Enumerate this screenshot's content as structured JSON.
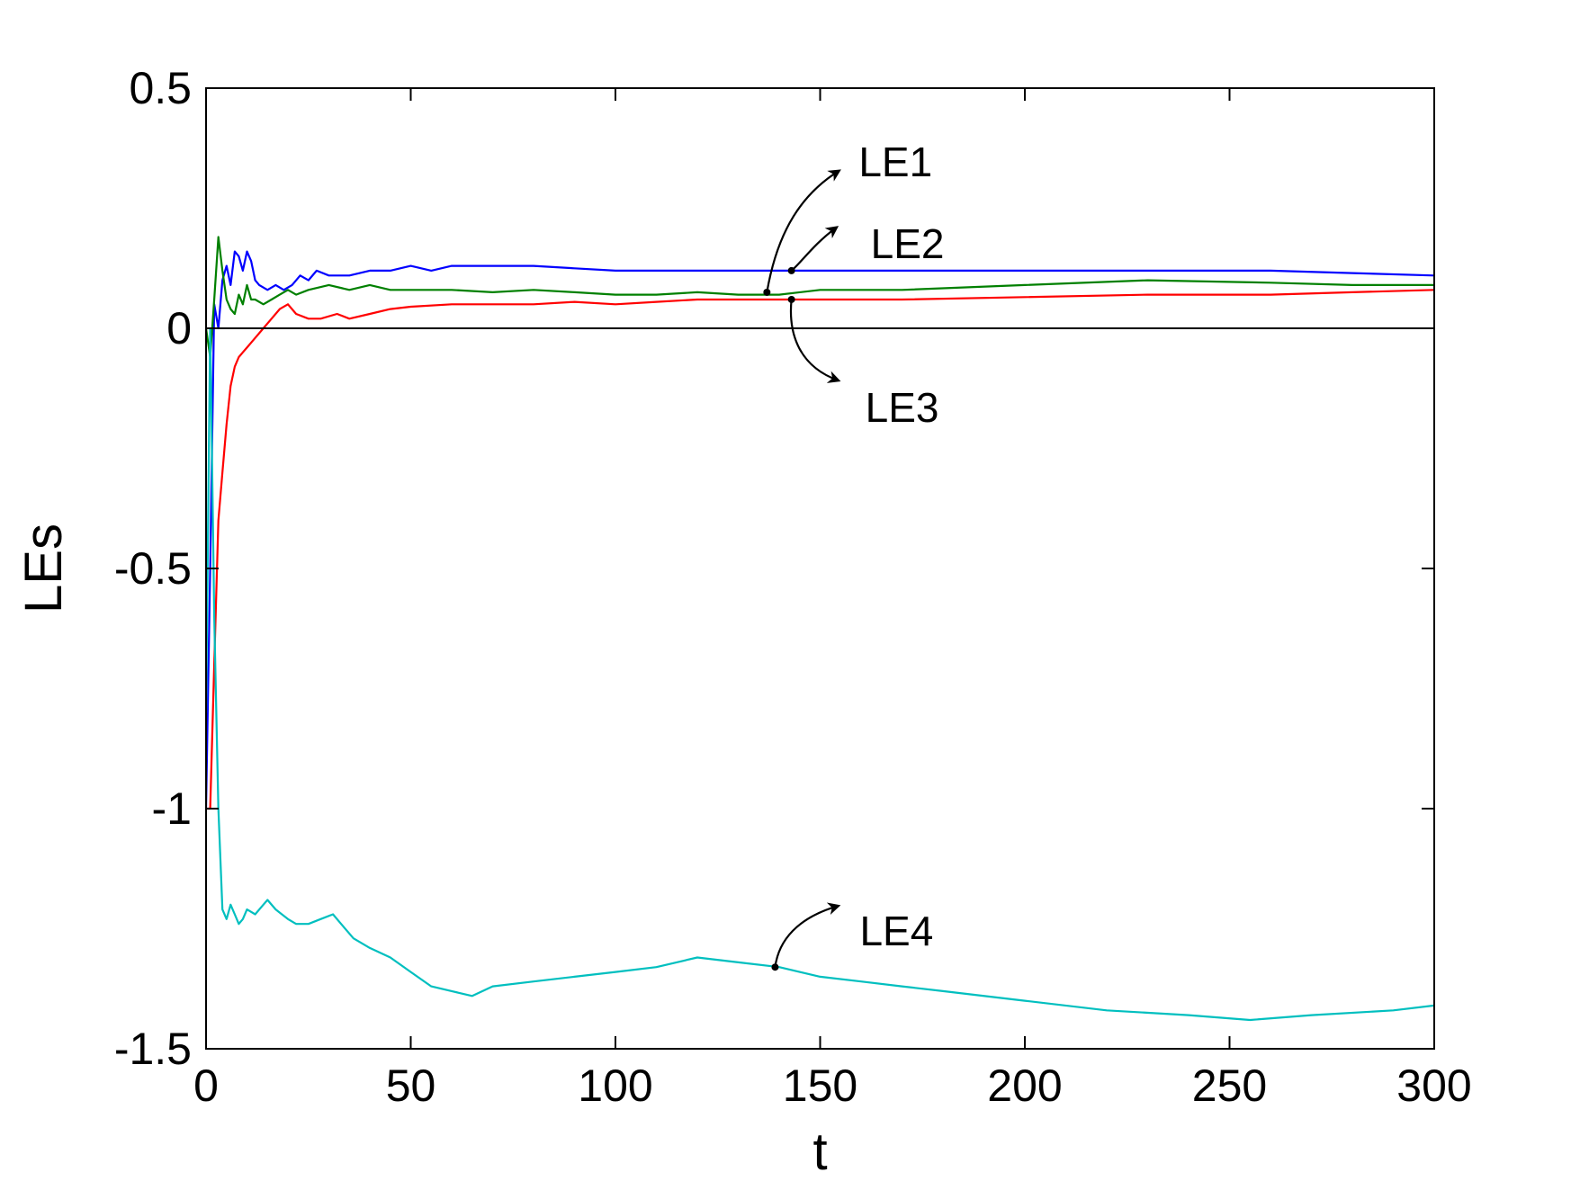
{
  "chart_data": {
    "type": "line",
    "xlabel": "t",
    "ylabel": "LEs",
    "xlim": [
      0,
      300
    ],
    "ylim": [
      -1.5,
      0.5
    ],
    "xticks": [
      0,
      50,
      100,
      150,
      200,
      250,
      300
    ],
    "xtick_labels": [
      "0",
      "50",
      "100",
      "150",
      "200",
      "250",
      "300"
    ],
    "yticks": [
      0.5,
      0,
      -0.5,
      -1,
      -1.5
    ],
    "ytick_labels": [
      "0.5",
      "0",
      "-0.5",
      "-1",
      "-1.5"
    ],
    "grid": false,
    "reference_line": {
      "y": 0,
      "color": "#000000"
    },
    "series": [
      {
        "color": "#0000ff",
        "x": [
          0,
          1,
          2,
          3,
          4,
          5,
          6,
          7,
          8,
          9,
          10,
          11,
          12,
          13,
          15,
          17,
          19,
          21,
          23,
          25,
          27,
          30,
          35,
          40,
          45,
          50,
          55,
          60,
          65,
          70,
          80,
          90,
          100,
          110,
          120,
          130,
          140,
          150,
          170,
          200,
          230,
          260,
          280,
          300
        ],
        "y": [
          -1.0,
          -0.5,
          0.05,
          0.0,
          0.1,
          0.13,
          0.09,
          0.16,
          0.15,
          0.12,
          0.16,
          0.14,
          0.1,
          0.09,
          0.08,
          0.09,
          0.08,
          0.09,
          0.11,
          0.1,
          0.12,
          0.11,
          0.11,
          0.12,
          0.12,
          0.13,
          0.12,
          0.13,
          0.13,
          0.13,
          0.13,
          0.125,
          0.12,
          0.12,
          0.12,
          0.12,
          0.12,
          0.12,
          0.12,
          0.12,
          0.12,
          0.12,
          0.115,
          0.11
        ]
      },
      {
        "color": "#008000",
        "x": [
          0,
          1,
          2,
          3,
          4,
          5,
          6,
          7,
          8,
          9,
          10,
          11,
          12,
          14,
          16,
          18,
          20,
          22,
          25,
          30,
          35,
          40,
          45,
          50,
          60,
          70,
          80,
          90,
          100,
          110,
          120,
          130,
          140,
          150,
          170,
          200,
          230,
          260,
          280,
          300
        ],
        "y": [
          0.0,
          -0.06,
          0.06,
          0.19,
          0.12,
          0.06,
          0.04,
          0.03,
          0.07,
          0.05,
          0.09,
          0.06,
          0.06,
          0.05,
          0.06,
          0.07,
          0.08,
          0.07,
          0.08,
          0.09,
          0.08,
          0.09,
          0.08,
          0.08,
          0.08,
          0.075,
          0.08,
          0.075,
          0.07,
          0.07,
          0.075,
          0.07,
          0.07,
          0.08,
          0.08,
          0.09,
          0.1,
          0.095,
          0.09,
          0.09
        ]
      },
      {
        "color": "#ff0000",
        "x": [
          0,
          1,
          2,
          3,
          4,
          5,
          6,
          7,
          8,
          9,
          10,
          12,
          14,
          16,
          18,
          20,
          22,
          25,
          28,
          32,
          35,
          40,
          45,
          50,
          60,
          70,
          80,
          90,
          100,
          110,
          120,
          130,
          140,
          150,
          170,
          200,
          230,
          260,
          280,
          300
        ],
        "y": [
          -1.0,
          -1.0,
          -0.7,
          -0.4,
          -0.3,
          -0.2,
          -0.12,
          -0.08,
          -0.06,
          -0.05,
          -0.04,
          -0.02,
          0.0,
          0.02,
          0.04,
          0.05,
          0.03,
          0.02,
          0.02,
          0.03,
          0.02,
          0.03,
          0.04,
          0.045,
          0.05,
          0.05,
          0.05,
          0.055,
          0.05,
          0.055,
          0.06,
          0.06,
          0.06,
          0.06,
          0.06,
          0.065,
          0.07,
          0.07,
          0.075,
          0.08
        ]
      },
      {
        "color": "#00bfbf",
        "x": [
          0,
          1,
          2,
          3,
          4,
          5,
          6,
          7,
          8,
          9,
          10,
          12,
          14,
          15,
          17,
          20,
          22,
          25,
          28,
          31,
          33,
          36,
          40,
          45,
          50,
          55,
          60,
          65,
          70,
          80,
          90,
          100,
          110,
          120,
          130,
          140,
          150,
          160,
          170,
          180,
          200,
          220,
          240,
          255,
          270,
          290,
          300
        ],
        "y": [
          -0.8,
          0.0,
          -0.6,
          -1.0,
          -1.21,
          -1.23,
          -1.2,
          -1.22,
          -1.24,
          -1.23,
          -1.21,
          -1.22,
          -1.2,
          -1.19,
          -1.21,
          -1.23,
          -1.24,
          -1.24,
          -1.23,
          -1.22,
          -1.24,
          -1.27,
          -1.29,
          -1.31,
          -1.34,
          -1.37,
          -1.38,
          -1.39,
          -1.37,
          -1.36,
          -1.35,
          -1.34,
          -1.33,
          -1.31,
          -1.32,
          -1.33,
          -1.35,
          -1.36,
          -1.37,
          -1.38,
          -1.4,
          -1.42,
          -1.43,
          -1.44,
          -1.43,
          -1.42,
          -1.41
        ]
      }
    ],
    "annotations": [
      {
        "text": "LE1",
        "anchor": {
          "x": 137,
          "y": 0.075
        }
      },
      {
        "text": "LE2",
        "anchor": {
          "x": 143,
          "y": 0.12
        }
      },
      {
        "text": "LE3",
        "anchor": {
          "x": 143,
          "y": 0.06
        }
      },
      {
        "text": "LE4",
        "anchor": {
          "x": 139,
          "y": -1.33
        }
      }
    ]
  }
}
